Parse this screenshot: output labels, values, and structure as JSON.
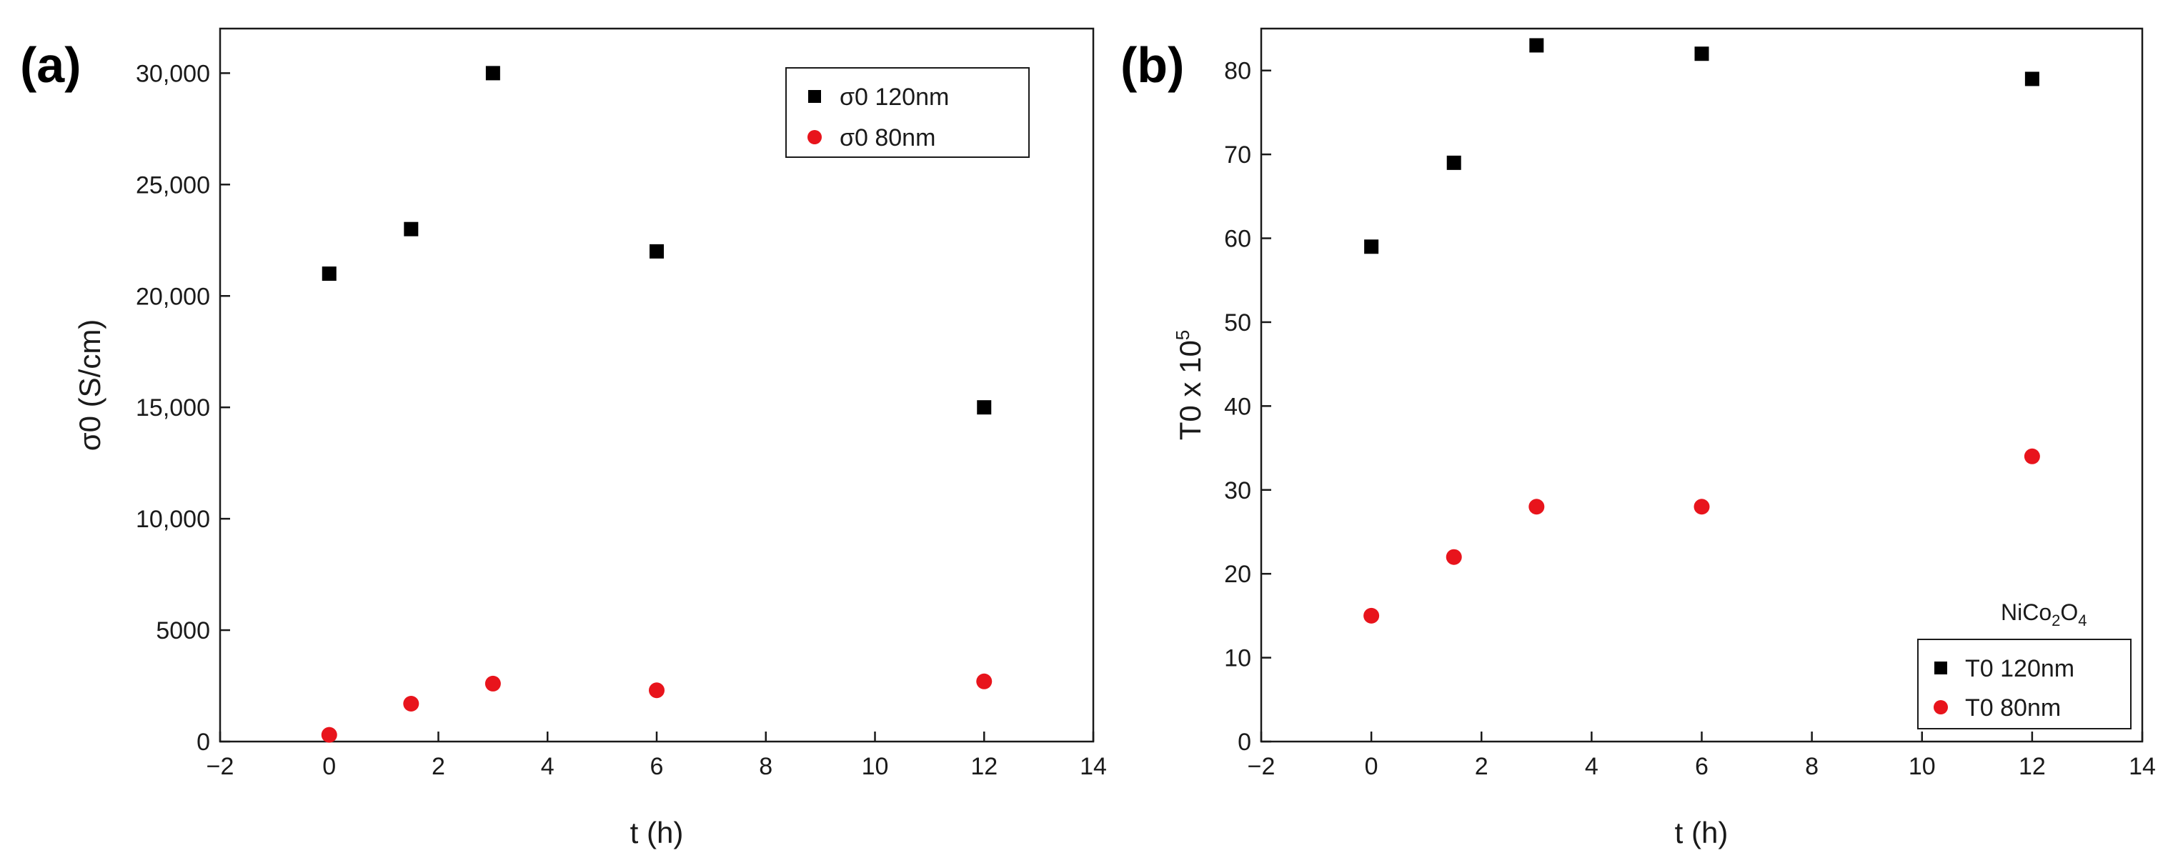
{
  "colors": {
    "series_120nm": "#000000",
    "series_80nm": "#e8141c",
    "axis": "#1a1a1a",
    "background": "#ffffff"
  },
  "chart_data": [
    {
      "panel_label": "(a)",
      "type": "scatter",
      "title": "",
      "xlabel": "t (h)",
      "ylabel": "σ0 (S/cm)",
      "xlim": [
        -2,
        14
      ],
      "ylim": [
        0,
        32000
      ],
      "x_ticks": [
        -2,
        0,
        2,
        4,
        6,
        8,
        10,
        12,
        14
      ],
      "x_tick_labels": [
        "−2",
        "0",
        "2",
        "4",
        "6",
        "8",
        "10",
        "12",
        "14"
      ],
      "y_ticks": [
        0,
        5000,
        10000,
        15000,
        20000,
        25000,
        30000
      ],
      "y_tick_labels": [
        "0",
        "5000",
        "10,000",
        "15,000",
        "20,000",
        "25,000",
        "30,000"
      ],
      "legend_position": "top-right",
      "annotation": "",
      "series": [
        {
          "name": "σ0 120nm",
          "marker": "square",
          "color": "#000000",
          "x": [
            0,
            1.5,
            3,
            6,
            12
          ],
          "y": [
            21000,
            23000,
            30000,
            22000,
            15000
          ]
        },
        {
          "name": "σ0 80nm",
          "marker": "circle",
          "color": "#e8141c",
          "x": [
            0,
            1.5,
            3,
            6,
            12
          ],
          "y": [
            300,
            1700,
            2600,
            2300,
            2700
          ]
        }
      ]
    },
    {
      "panel_label": "(b)",
      "type": "scatter",
      "title": "",
      "xlabel": "t (h)",
      "ylabel": "T0 x 10",
      "ylabel_superscript": "5",
      "xlim": [
        -2,
        14
      ],
      "ylim": [
        0,
        85
      ],
      "x_ticks": [
        -2,
        0,
        2,
        4,
        6,
        8,
        10,
        12,
        14
      ],
      "x_tick_labels": [
        "−2",
        "0",
        "2",
        "4",
        "6",
        "8",
        "10",
        "12",
        "14"
      ],
      "y_ticks": [
        0,
        10,
        20,
        30,
        40,
        50,
        60,
        70,
        80
      ],
      "y_tick_labels": [
        "0",
        "10",
        "20",
        "30",
        "40",
        "50",
        "60",
        "70",
        "80"
      ],
      "legend_position": "bottom-right",
      "annotation": {
        "parts": [
          {
            "text": "NiCo",
            "sub": false
          },
          {
            "text": "2",
            "sub": true
          },
          {
            "text": "O",
            "sub": false
          },
          {
            "text": "4",
            "sub": true
          }
        ]
      },
      "series": [
        {
          "name": "T0 120nm",
          "marker": "square",
          "color": "#000000",
          "x": [
            0,
            1.5,
            3,
            6,
            12
          ],
          "y": [
            59,
            69,
            83,
            82,
            79
          ]
        },
        {
          "name": "T0 80nm",
          "marker": "circle",
          "color": "#e8141c",
          "x": [
            0,
            1.5,
            3,
            6,
            12
          ],
          "y": [
            15,
            22,
            28,
            28,
            34
          ]
        }
      ]
    }
  ]
}
